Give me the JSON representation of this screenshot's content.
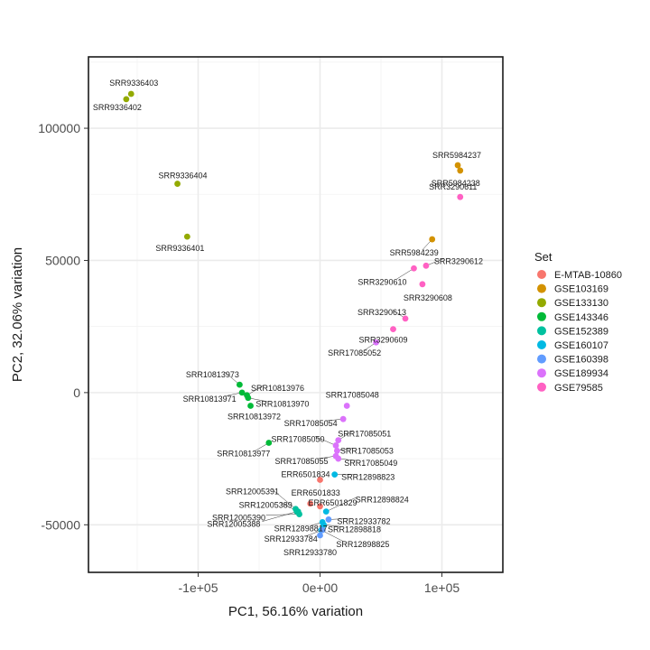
{
  "chart_data": {
    "type": "scatter",
    "title": "",
    "xlabel": "PC1, 56.16% variation",
    "ylabel": "PC2, 32.06% variation",
    "xlim": [
      -190000,
      150000
    ],
    "ylim": [
      -68000,
      127000
    ],
    "x_ticks": [
      -100000,
      0,
      100000
    ],
    "x_tick_labels": [
      "-1e+05",
      "0e+00",
      "1e+05"
    ],
    "y_ticks": [
      -50000,
      0,
      50000,
      100000
    ],
    "y_tick_labels": [
      "-50000",
      "0",
      "50000",
      "100000"
    ],
    "grid": true,
    "legend": {
      "title": "Set",
      "position": "right"
    },
    "series": [
      {
        "name": "E-MTAB-10860",
        "color": "#F8766D",
        "points": [
          {
            "x": 0,
            "y": -33000,
            "label": "ERR6501834"
          },
          {
            "x": -8000,
            "y": -42000,
            "label": "ERR6501833"
          },
          {
            "x": 0,
            "y": -43000,
            "label": "ERR6501829"
          }
        ]
      },
      {
        "name": "GSE103169",
        "color": "#D39200",
        "points": [
          {
            "x": 113000,
            "y": 86000,
            "label": "SRR5984237"
          },
          {
            "x": 115000,
            "y": 84000,
            "label": "SRR5984238"
          },
          {
            "x": 92000,
            "y": 58000,
            "label": "SRR5984239"
          }
        ]
      },
      {
        "name": "GSE133130",
        "color": "#93AA00",
        "points": [
          {
            "x": -155000,
            "y": 113000,
            "label": "SRR9336403"
          },
          {
            "x": -159000,
            "y": 111000,
            "label": "SRR9336402"
          },
          {
            "x": -117000,
            "y": 79000,
            "label": "SRR9336404"
          },
          {
            "x": -109000,
            "y": 59000,
            "label": "SRR9336401"
          }
        ]
      },
      {
        "name": "GSE143346",
        "color": "#00BA38",
        "points": [
          {
            "x": -66000,
            "y": 3000,
            "label": "SRR10813973"
          },
          {
            "x": -60000,
            "y": -1000,
            "label": "SRR10813976"
          },
          {
            "x": -64000,
            "y": 0,
            "label": "SRR10813971"
          },
          {
            "x": -59000,
            "y": -2000,
            "label": "SRR10813970"
          },
          {
            "x": -57000,
            "y": -5000,
            "label": "SRR10813972"
          },
          {
            "x": -42000,
            "y": -19000,
            "label": "SRR10813977"
          }
        ]
      },
      {
        "name": "GSE152389",
        "color": "#00C19F",
        "points": [
          {
            "x": -20000,
            "y": -44000,
            "label": "SRR12005391"
          },
          {
            "x": -18000,
            "y": -45000,
            "label": "SRR12005389"
          },
          {
            "x": -17000,
            "y": -46000,
            "label": "SRR12005390"
          },
          {
            "x": -19000,
            "y": -45000,
            "label": "SRR12005388"
          }
        ]
      },
      {
        "name": "GSE160107",
        "color": "#00B9E3",
        "points": [
          {
            "x": 12000,
            "y": -31000,
            "label": "SRR12898823"
          },
          {
            "x": 5000,
            "y": -45000,
            "label": "SRR12898824"
          },
          {
            "x": 2000,
            "y": -49000,
            "label": "SRR12898817"
          },
          {
            "x": 3000,
            "y": -50000,
            "label": "SRR12898818"
          },
          {
            "x": 1000,
            "y": -52000,
            "label": "SRR12898825"
          }
        ]
      },
      {
        "name": "GSE160398",
        "color": "#619CFF",
        "points": [
          {
            "x": 7000,
            "y": -48000,
            "label": "SRR12933782"
          },
          {
            "x": 2000,
            "y": -52000,
            "label": "SRR12933784"
          },
          {
            "x": 0,
            "y": -54000,
            "label": "SRR12933780"
          }
        ]
      },
      {
        "name": "GSE189934",
        "color": "#DB72FB",
        "points": [
          {
            "x": 46000,
            "y": 19000,
            "label": "SRR17085052"
          },
          {
            "x": 22000,
            "y": -5000,
            "label": "SRR17085048"
          },
          {
            "x": 19000,
            "y": -10000,
            "label": "SRR17085054"
          },
          {
            "x": 15000,
            "y": -18000,
            "label": "SRR17085051"
          },
          {
            "x": 13000,
            "y": -20000,
            "label": "SRR17085050"
          },
          {
            "x": 14000,
            "y": -22000,
            "label": "SRR17085053"
          },
          {
            "x": 13000,
            "y": -24000,
            "label": "SRR17085055"
          },
          {
            "x": 15000,
            "y": -25000,
            "label": "SRR17085049"
          }
        ]
      },
      {
        "name": "GSE79585",
        "color": "#FF61C3",
        "points": [
          {
            "x": 115000,
            "y": 74000,
            "label": "SRR3290611"
          },
          {
            "x": 87000,
            "y": 48000,
            "label": "SRR3290612"
          },
          {
            "x": 77000,
            "y": 47000,
            "label": "SRR3290610"
          },
          {
            "x": 84000,
            "y": 41000,
            "label": "SRR3290608"
          },
          {
            "x": 70000,
            "y": 28000,
            "label": "SRR3290613"
          },
          {
            "x": 60000,
            "y": 24000,
            "label": "SRR3290609"
          }
        ]
      }
    ]
  }
}
